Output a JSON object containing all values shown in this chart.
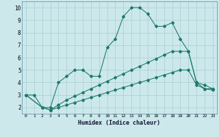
{
  "xlabel": "Humidex (Indice chaleur)",
  "bg_color": "#cce8eb",
  "grid_color": "#a8cdd1",
  "line_color": "#1e7a6e",
  "xlim": [
    -0.5,
    23.5
  ],
  "ylim": [
    1.5,
    10.5
  ],
  "yticks": [
    2,
    3,
    4,
    5,
    6,
    7,
    8,
    9,
    10
  ],
  "xticks": [
    0,
    1,
    2,
    3,
    4,
    5,
    6,
    7,
    8,
    9,
    10,
    11,
    12,
    13,
    14,
    15,
    16,
    17,
    18,
    19,
    20,
    21,
    22,
    23
  ],
  "line1_x": [
    0,
    1,
    2,
    3,
    4,
    5,
    6,
    7,
    8,
    9,
    10,
    11,
    12,
    13,
    14,
    15,
    16,
    17,
    18,
    19,
    20,
    21,
    22,
    23
  ],
  "line1_y": [
    3.0,
    3.0,
    2.0,
    2.0,
    4.0,
    4.5,
    5.0,
    5.0,
    4.5,
    4.5,
    6.8,
    7.5,
    9.3,
    10.0,
    10.0,
    9.5,
    8.5,
    8.5,
    8.8,
    7.5,
    6.5,
    4.0,
    3.5,
    3.5
  ],
  "line2_x": [
    0,
    2,
    3,
    4,
    5,
    6,
    7,
    8,
    9,
    10,
    11,
    12,
    13,
    14,
    15,
    16,
    17,
    18,
    19,
    20,
    21,
    22,
    23
  ],
  "line2_y": [
    3.0,
    2.0,
    1.8,
    2.2,
    2.6,
    2.9,
    3.2,
    3.5,
    3.8,
    4.1,
    4.4,
    4.7,
    5.0,
    5.3,
    5.6,
    5.9,
    6.2,
    6.5,
    6.5,
    6.5,
    4.0,
    3.8,
    3.5
  ],
  "line3_x": [
    0,
    2,
    3,
    4,
    5,
    6,
    7,
    8,
    9,
    10,
    11,
    12,
    13,
    14,
    15,
    16,
    17,
    18,
    19,
    20,
    21,
    22,
    23
  ],
  "line3_y": [
    3.0,
    2.0,
    1.8,
    2.0,
    2.2,
    2.4,
    2.6,
    2.8,
    3.0,
    3.2,
    3.4,
    3.6,
    3.8,
    4.0,
    4.2,
    4.4,
    4.6,
    4.8,
    5.0,
    5.0,
    3.8,
    3.5,
    3.4
  ]
}
